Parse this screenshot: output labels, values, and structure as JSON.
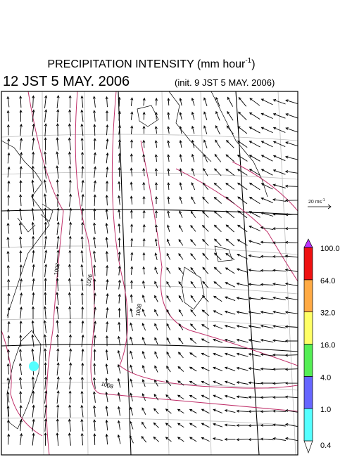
{
  "title": {
    "text": "PRECIPITATION INTENSITY (mm hour",
    "superscript": "-1",
    "close": ")"
  },
  "valid_time": "12 JST 5 MAY. 2006",
  "init_time": "(init. 9 JST 5 MAY. 2006)",
  "vector_scale": {
    "text": "20 ms",
    "superscript": "-1"
  },
  "colorbar": {
    "labels": [
      "0.4",
      "1.0",
      "4.0",
      "16.0",
      "32.0",
      "64.0",
      "100.0"
    ],
    "colors": [
      "#ffffff",
      "#55ffff",
      "#6666ff",
      "#55ee55",
      "#ffff66",
      "#ffaa44",
      "#ee1111",
      "#bb33ff"
    ]
  },
  "contour_labels": [
    "1007",
    "1006",
    "1008",
    "1008"
  ]
}
